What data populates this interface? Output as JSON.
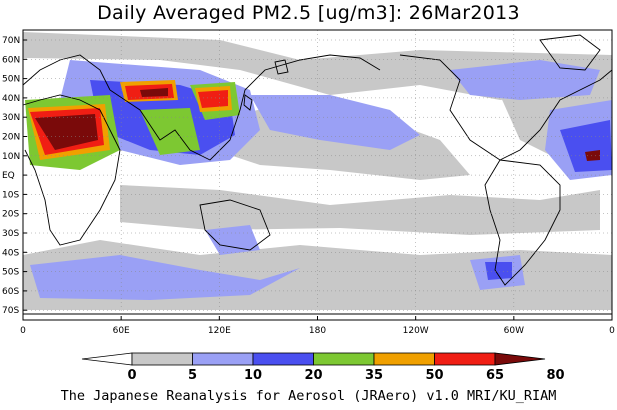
{
  "title": "Daily Averaged PM2.5 [ug/m3]: 26Mar2013",
  "credit": "The Japanese Reanalysis for Aerosol (JRAero) v1.0 MRI/KU_RIAM",
  "lat_labels": [
    "70N",
    "60N",
    "50N",
    "40N",
    "30N",
    "20N",
    "10N",
    "EQ",
    "10S",
    "20S",
    "30S",
    "40S",
    "50S",
    "60S",
    "70S"
  ],
  "lon_labels": [
    "0",
    "60E",
    "120E",
    "180",
    "120W",
    "60W",
    "0"
  ],
  "colorbar": {
    "levels": [
      "0",
      "5",
      "10",
      "20",
      "35",
      "50",
      "65",
      "80"
    ],
    "colors": [
      "#ffffff",
      "#c8c8c8",
      "#9aa0f5",
      "#4a4ff0",
      "#7dc832",
      "#f0a000",
      "#f01e14",
      "#7a0a0a"
    ]
  },
  "colors": {
    "coast": "#000000",
    "grid": "#888888"
  }
}
